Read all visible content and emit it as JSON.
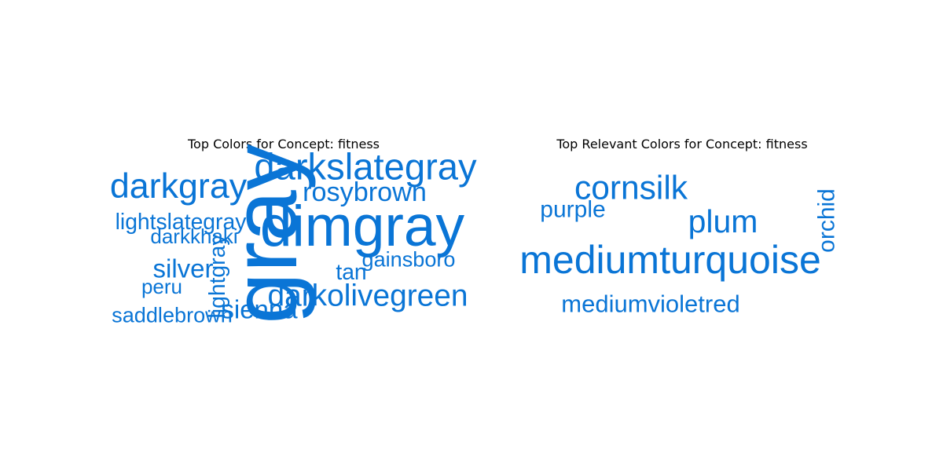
{
  "chart_data": [
    {
      "type": "wordcloud",
      "title": "Top Colors for Concept: fitness",
      "color": "#0a75d6",
      "words": [
        {
          "text": "gray",
          "weight": 1.0,
          "vertical": true
        },
        {
          "text": "dimgray",
          "weight": 0.62
        },
        {
          "text": "darkslategray",
          "weight": 0.4
        },
        {
          "text": "darkgray",
          "weight": 0.38
        },
        {
          "text": "darkolivegreen",
          "weight": 0.33
        },
        {
          "text": "rosybrown",
          "weight": 0.29
        },
        {
          "text": "silver",
          "weight": 0.28
        },
        {
          "text": "sienna",
          "weight": 0.28
        },
        {
          "text": "lightgray",
          "weight": 0.24,
          "vertical": true
        },
        {
          "text": "tan",
          "weight": 0.24
        },
        {
          "text": "lightslategray",
          "weight": 0.24
        },
        {
          "text": "saddlebrown",
          "weight": 0.23
        },
        {
          "text": "gainsboro",
          "weight": 0.23
        },
        {
          "text": "peru",
          "weight": 0.22
        },
        {
          "text": "darkkhaki",
          "weight": 0.22
        }
      ]
    },
    {
      "type": "wordcloud",
      "title": "Top Relevant Colors for Concept: fitness",
      "color": "#0a75d6",
      "words": [
        {
          "text": "mediumturquoise",
          "weight": 1.0
        },
        {
          "text": "cornsilk",
          "weight": 0.85
        },
        {
          "text": "plum",
          "weight": 0.82
        },
        {
          "text": "mediumvioletred",
          "weight": 0.62
        },
        {
          "text": "orchid",
          "weight": 0.6,
          "vertical": true
        },
        {
          "text": "purple",
          "weight": 0.6
        }
      ]
    }
  ]
}
